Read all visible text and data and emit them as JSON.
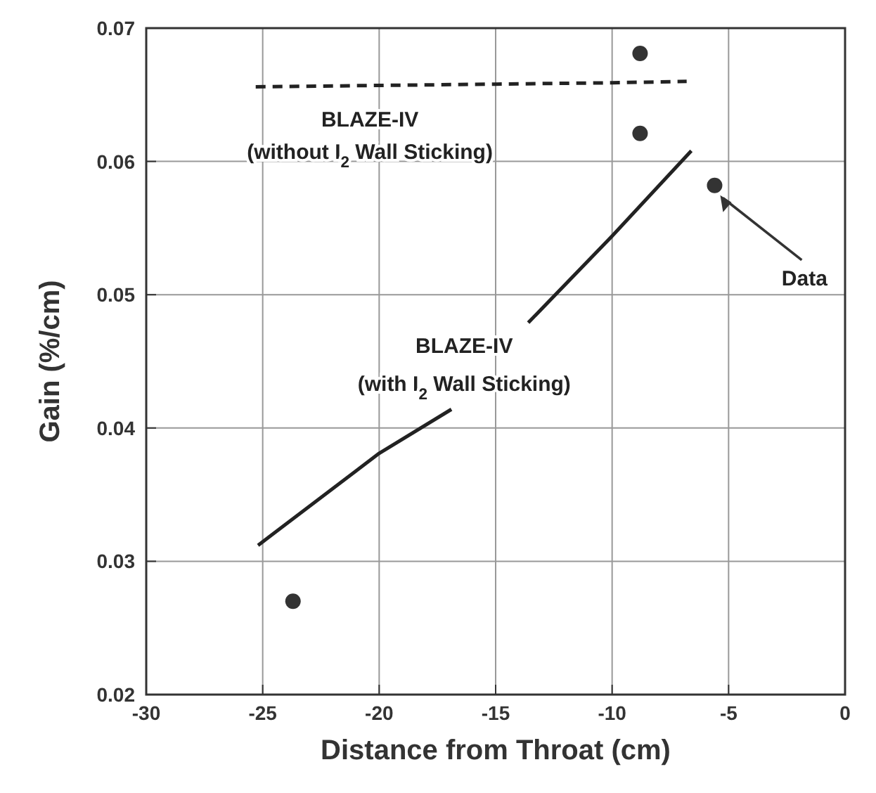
{
  "chart_data": {
    "type": "line",
    "xlabel": "Distance from Throat (cm)",
    "ylabel": "Gain (%/cm)",
    "xlim": [
      -30,
      0
    ],
    "xticks": [
      -30,
      -25,
      -20,
      -15,
      -10,
      -5,
      0
    ],
    "ylim": [
      0.02,
      0.07
    ],
    "yticks": [
      0.02,
      0.03,
      0.04,
      0.05,
      0.06,
      0.07
    ],
    "grid": true,
    "series": [
      {
        "color": "#222222",
        "line_style": "dashed",
        "marker": "none",
        "x": [
          -25.3,
          -20,
          -15,
          -10,
          -6.8
        ],
        "values": [
          0.0656,
          0.0657,
          0.0658,
          0.0659,
          0.066
        ]
      },
      {
        "color": "#222222",
        "line_style": "solid",
        "marker": "none",
        "x": [
          -25.2,
          -20,
          -16.9,
          -15,
          -13.6,
          -10,
          -6.6
        ],
        "values": [
          0.0312,
          0.0381,
          0.0414,
          null,
          0.0479,
          0.0544,
          0.0608
        ]
      },
      {
        "type": "scatter",
        "color": "#333333",
        "marker": "circle",
        "x": [
          -23.7,
          -8.8,
          -8.8,
          -5.6
        ],
        "values": [
          0.027,
          0.0681,
          0.0621,
          0.0582
        ]
      }
    ],
    "annotations": [
      "BLAZE-IV",
      "(without I$_{2}$ Wall Sticking)",
      "BLAZE-IV",
      "(with I$_{2}$ Wall Sticking)",
      "Data"
    ]
  }
}
